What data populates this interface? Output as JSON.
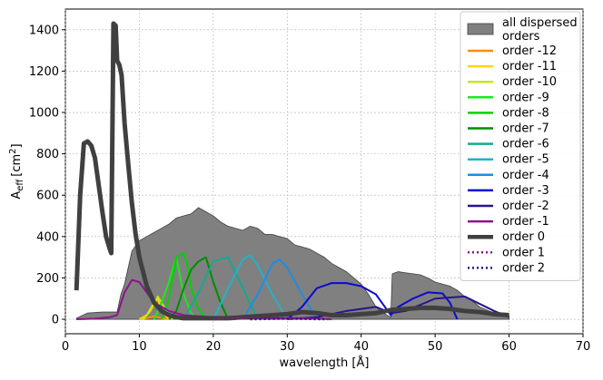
{
  "chart_data": {
    "type": "line",
    "xlabel": "wavelength [Å]",
    "ylabel_main": "A",
    "ylabel_sub": "eff",
    "ylabel_unit": "[cm",
    "ylabel_sup": "2",
    "ylabel_close": "]",
    "xlim": [
      0,
      70
    ],
    "ylim": [
      -70,
      1500
    ],
    "xticks": [
      0,
      10,
      20,
      30,
      40,
      50,
      60,
      70
    ],
    "yticks": [
      0,
      200,
      400,
      600,
      800,
      1000,
      1200,
      1400
    ],
    "grid": true,
    "legend_position": "top-right",
    "area": {
      "name_line1": "all dispersed",
      "name_line2": "orders",
      "color": "#808080",
      "x": [
        1.5,
        3,
        5,
        7,
        7.5,
        8,
        9,
        10,
        11,
        12,
        13,
        14,
        15,
        16,
        17,
        18,
        19,
        20,
        21,
        22,
        23,
        24,
        25,
        26,
        27,
        28,
        29,
        30,
        31,
        32,
        33,
        34,
        35,
        36,
        37,
        38,
        39,
        40,
        41,
        42,
        43,
        44,
        44.2,
        45,
        46,
        47,
        48,
        49,
        50,
        51,
        52,
        53,
        54,
        55,
        56,
        58,
        60
      ],
      "y": [
        5,
        30,
        35,
        35,
        120,
        170,
        330,
        380,
        400,
        420,
        440,
        460,
        490,
        500,
        510,
        540,
        520,
        500,
        470,
        450,
        440,
        430,
        450,
        440,
        410,
        410,
        400,
        390,
        360,
        350,
        340,
        320,
        300,
        270,
        250,
        230,
        200,
        170,
        120,
        60,
        30,
        10,
        220,
        230,
        225,
        220,
        215,
        200,
        180,
        170,
        160,
        140,
        110,
        90,
        60,
        30,
        15
      ]
    },
    "series": [
      {
        "name": "order -12",
        "color": "#ff8c00",
        "width": 2,
        "dash": "",
        "x": [
          10,
          11,
          12,
          13,
          14
        ],
        "y": [
          0,
          5,
          15,
          5,
          0
        ]
      },
      {
        "name": "order -11",
        "color": "#ffd700",
        "width": 2,
        "dash": "",
        "x": [
          10,
          11,
          12,
          12.5,
          13,
          14
        ],
        "y": [
          0,
          20,
          80,
          100,
          40,
          0
        ]
      },
      {
        "name": "order -10",
        "color": "#c8e61e",
        "width": 2,
        "dash": "",
        "x": [
          10.5,
          11.5,
          12.5,
          13.5,
          14.5
        ],
        "y": [
          0,
          40,
          110,
          50,
          0
        ]
      },
      {
        "name": "order -9",
        "color": "#1ee61e",
        "width": 2,
        "dash": "",
        "x": [
          12,
          13,
          14,
          15,
          16,
          17,
          18
        ],
        "y": [
          0,
          80,
          180,
          300,
          120,
          30,
          0
        ]
      },
      {
        "name": "order -8",
        "color": "#00d200",
        "width": 2,
        "dash": "",
        "x": [
          13,
          14,
          15,
          16,
          16.5,
          17,
          18,
          19
        ],
        "y": [
          0,
          100,
          300,
          320,
          260,
          150,
          50,
          0
        ]
      },
      {
        "name": "order -7",
        "color": "#008c00",
        "width": 2,
        "dash": "",
        "x": [
          14,
          15,
          16,
          17,
          18,
          19,
          20,
          21,
          22
        ],
        "y": [
          0,
          40,
          150,
          240,
          280,
          300,
          180,
          80,
          0
        ]
      },
      {
        "name": "order -6",
        "color": "#14aa8c",
        "width": 2,
        "dash": "",
        "x": [
          16,
          18,
          20,
          22,
          24,
          26
        ],
        "y": [
          0,
          130,
          280,
          300,
          150,
          0
        ]
      },
      {
        "name": "order -5",
        "color": "#1eb4c8",
        "width": 2,
        "dash": "",
        "x": [
          20,
          22,
          24,
          25,
          26,
          28,
          30
        ],
        "y": [
          0,
          150,
          290,
          310,
          260,
          120,
          0
        ]
      },
      {
        "name": "order -4",
        "color": "#1e8ce6",
        "width": 2,
        "dash": "",
        "x": [
          24,
          26,
          28,
          29,
          30,
          32,
          34
        ],
        "y": [
          0,
          120,
          270,
          290,
          250,
          120,
          0
        ]
      },
      {
        "name": "order -3",
        "color": "#0a0ad2",
        "width": 2,
        "dash": "",
        "x": [
          30,
          32,
          34,
          36,
          38,
          40,
          42,
          44,
          45,
          47,
          49,
          51,
          52,
          53
        ],
        "y": [
          0,
          60,
          150,
          175,
          175,
          160,
          120,
          20,
          60,
          100,
          130,
          125,
          80,
          0
        ]
      },
      {
        "name": "order -2",
        "color": "#28148c",
        "width": 2,
        "dash": "",
        "x": [
          30,
          34,
          38,
          42,
          44,
          46,
          50,
          54,
          58,
          60
        ],
        "y": [
          0,
          10,
          40,
          60,
          30,
          40,
          100,
          110,
          40,
          10
        ]
      },
      {
        "name": "order -1",
        "color": "#8c148c",
        "width": 2,
        "dash": "",
        "x": [
          1.5,
          4,
          6,
          7,
          8,
          9,
          10,
          11,
          12,
          14,
          16,
          20,
          24,
          28,
          32,
          36
        ],
        "y": [
          0,
          3,
          10,
          20,
          130,
          190,
          180,
          130,
          80,
          40,
          20,
          10,
          5,
          5,
          5,
          0
        ]
      },
      {
        "name": "order 0",
        "color": "#404040",
        "width": 5,
        "dash": "",
        "x": [
          1.5,
          2,
          2.5,
          3,
          3.5,
          4,
          4.5,
          5,
          5.5,
          6,
          6.2,
          6.5,
          6.8,
          7,
          7.3,
          7.6,
          8,
          8.5,
          9,
          9.5,
          10,
          11,
          12,
          13,
          14,
          15,
          16,
          18,
          20,
          22,
          24,
          26,
          28,
          30,
          32,
          34,
          36,
          38,
          40,
          42,
          44,
          46,
          48,
          50,
          52,
          54,
          56,
          58,
          60
        ],
        "y": [
          140,
          600,
          850,
          860,
          840,
          780,
          650,
          520,
          400,
          340,
          320,
          1430,
          1420,
          1250,
          1230,
          1180,
          950,
          750,
          560,
          410,
          300,
          160,
          80,
          40,
          20,
          10,
          5,
          5,
          5,
          5,
          10,
          15,
          20,
          25,
          35,
          30,
          20,
          20,
          25,
          30,
          45,
          50,
          55,
          55,
          50,
          40,
          35,
          25,
          20
        ]
      },
      {
        "name": "order 1",
        "color": "#8c148c",
        "width": 2.5,
        "dash": "2,3",
        "x": [
          20,
          24,
          28,
          32,
          36
        ],
        "y": [
          0,
          5,
          5,
          5,
          0
        ]
      },
      {
        "name": "order 2",
        "color": "#28148c",
        "width": 2.5,
        "dash": "2,3",
        "x": [
          25,
          30,
          35
        ],
        "y": [
          0,
          3,
          0
        ]
      }
    ]
  }
}
